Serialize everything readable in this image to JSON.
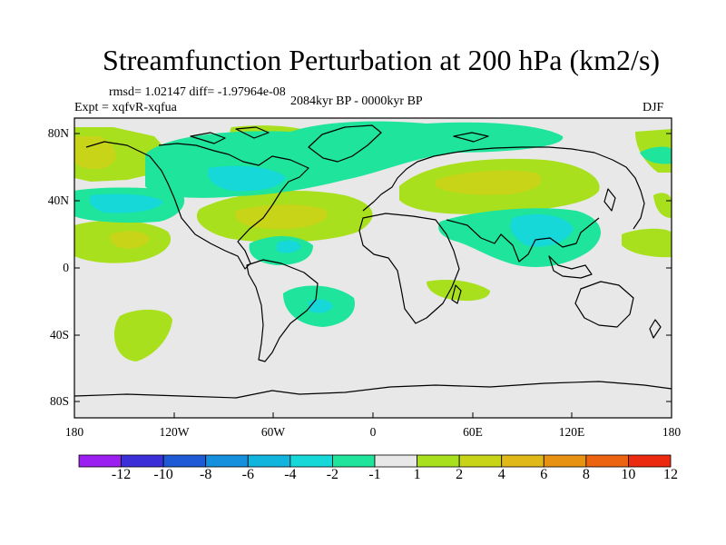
{
  "title": "Streamfunction Perturbation at 200 hPa (km2/s)",
  "stats": "rmsd= 1.02147  diff= -1.97964e-08",
  "experiment": "Expt = xqfvR-xqfua",
  "period": "2084kyr BP - 0000kyr BP",
  "season": "DJF",
  "lat_labels": [
    "80N",
    "40N",
    "0",
    "40S",
    "80S"
  ],
  "lon_labels": [
    "180",
    "120W",
    "60W",
    "0",
    "60E",
    "120E",
    "180"
  ],
  "colorbar": {
    "labels": [
      "-12",
      "-10",
      "-8",
      "-6",
      "-4",
      "-2",
      "-1",
      "1",
      "2",
      "4",
      "6",
      "8",
      "10",
      "12"
    ],
    "colors": [
      "#9b1ff0",
      "#3b2fd8",
      "#1f5ad6",
      "#1590dc",
      "#10b4dc",
      "#16d8d8",
      "#1ee49c",
      "#e8e8e8",
      "#a8e01e",
      "#c8d418",
      "#e0b818",
      "#e89212",
      "#ec6410",
      "#ec2a10"
    ]
  },
  "colors": {
    "neutral": "#e8e8e8",
    "c_pos1": "#a8e01e",
    "c_pos2": "#c8d418",
    "c_neg1": "#1ee49c",
    "c_neg2": "#16d8d8"
  }
}
